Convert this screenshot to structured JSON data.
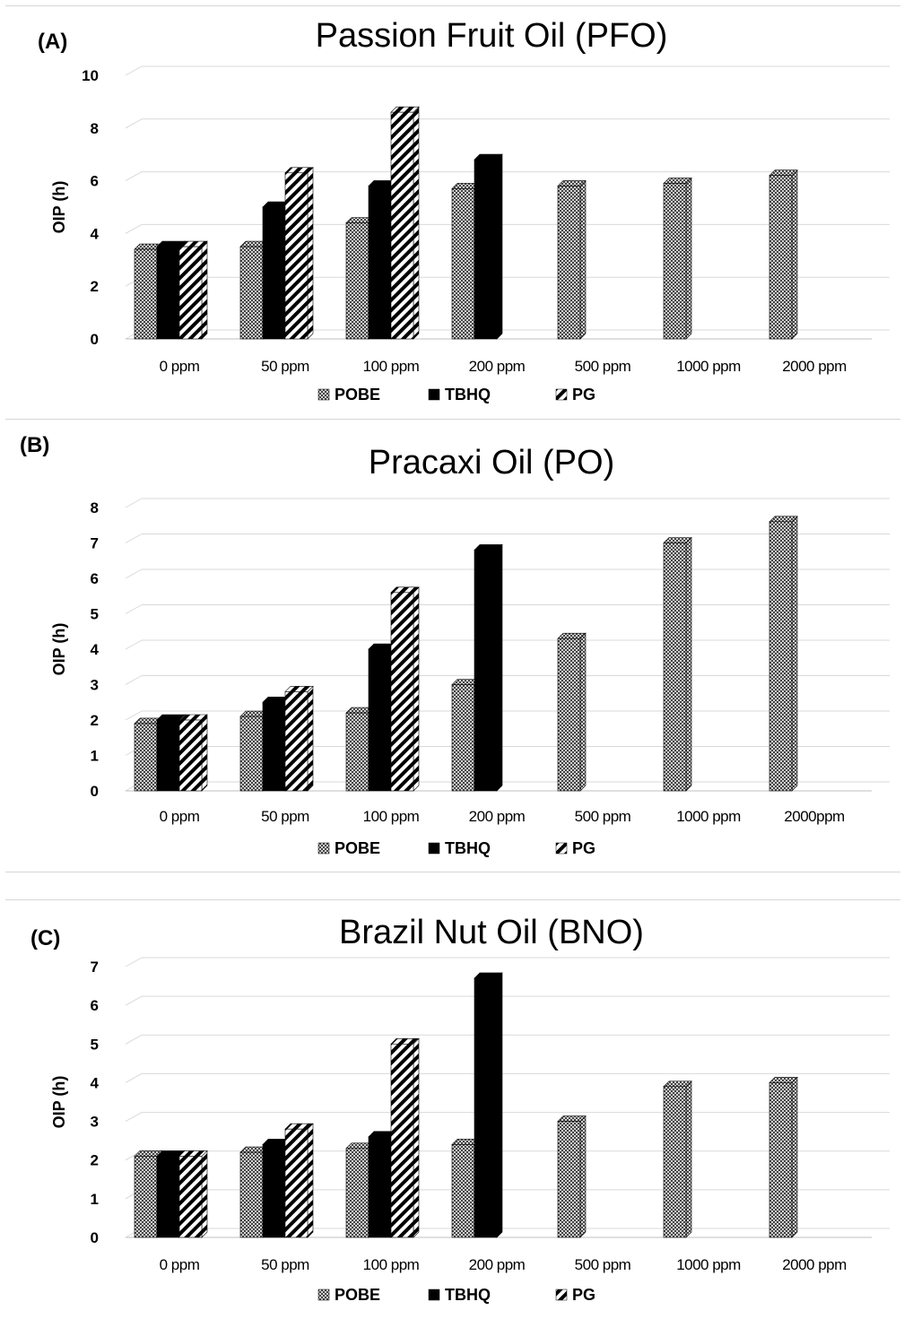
{
  "colors": {
    "pobe": "#7a7a7a",
    "tbhq": "#000000",
    "pg": "#000000",
    "grid": "#d9d9d9",
    "text": "#000000"
  },
  "chart_data": [
    {
      "type": "bar",
      "panel_label": "(A)",
      "title": "Passion Fruit Oil (PFO)",
      "ylabel": "OIP (h)",
      "xlabel": "",
      "categories": [
        "0 ppm",
        "50 ppm",
        "100 ppm",
        "200 ppm",
        "500 ppm",
        "1000 ppm",
        "2000 ppm"
      ],
      "series": [
        {
          "name": "POBE",
          "values": [
            3.4,
            3.5,
            4.4,
            5.7,
            5.8,
            5.9,
            6.2
          ]
        },
        {
          "name": "TBHQ",
          "values": [
            3.5,
            5.0,
            5.8,
            6.8,
            null,
            null,
            null
          ]
        },
        {
          "name": "PG",
          "values": [
            3.5,
            6.3,
            8.6,
            null,
            null,
            null,
            null
          ]
        }
      ],
      "ylim": [
        0,
        10
      ],
      "yticks": [
        0,
        2,
        4,
        6,
        8,
        10
      ],
      "legend": [
        "POBE",
        "TBHQ",
        "PG"
      ],
      "legend_position": "bottom",
      "grid": true
    },
    {
      "type": "bar",
      "panel_label": "(B)",
      "title": "Pracaxi Oil (PO)",
      "ylabel": "OIP (h)",
      "xlabel": "",
      "categories": [
        "0 ppm",
        "50 ppm",
        "100 ppm",
        "200 ppm",
        "500 ppm",
        "1000 ppm",
        "2000ppm"
      ],
      "series": [
        {
          "name": "POBE",
          "values": [
            1.9,
            2.1,
            2.2,
            3.0,
            4.3,
            7.0,
            7.6
          ]
        },
        {
          "name": "TBHQ",
          "values": [
            2.0,
            2.5,
            4.0,
            6.8,
            null,
            null,
            null
          ]
        },
        {
          "name": "PG",
          "values": [
            2.0,
            2.8,
            5.6,
            null,
            null,
            null,
            null
          ]
        }
      ],
      "ylim": [
        0,
        8
      ],
      "yticks": [
        0,
        1,
        2,
        3,
        4,
        5,
        6,
        7,
        8
      ],
      "legend": [
        "POBE",
        "TBHQ",
        "PG"
      ],
      "legend_position": "bottom",
      "grid": true
    },
    {
      "type": "bar",
      "panel_label": "(C)",
      "title": "Brazil Nut Oil (BNO)",
      "ylabel": "OIP (h)",
      "xlabel": "",
      "categories": [
        "0 ppm",
        "50 ppm",
        "100 ppm",
        "200 ppm",
        "500 ppm",
        "1000 ppm",
        "2000 ppm"
      ],
      "series": [
        {
          "name": "POBE",
          "values": [
            2.1,
            2.2,
            2.3,
            2.4,
            3.0,
            3.9,
            4.0
          ]
        },
        {
          "name": "TBHQ",
          "values": [
            2.1,
            2.4,
            2.6,
            6.7,
            null,
            null,
            null
          ]
        },
        {
          "name": "PG",
          "values": [
            2.1,
            2.8,
            5.0,
            null,
            null,
            null,
            null
          ]
        }
      ],
      "ylim": [
        0,
        7
      ],
      "yticks": [
        0,
        1,
        2,
        3,
        4,
        5,
        6,
        7
      ],
      "legend": [
        "POBE",
        "TBHQ",
        "PG"
      ],
      "legend_position": "bottom",
      "grid": true
    }
  ]
}
